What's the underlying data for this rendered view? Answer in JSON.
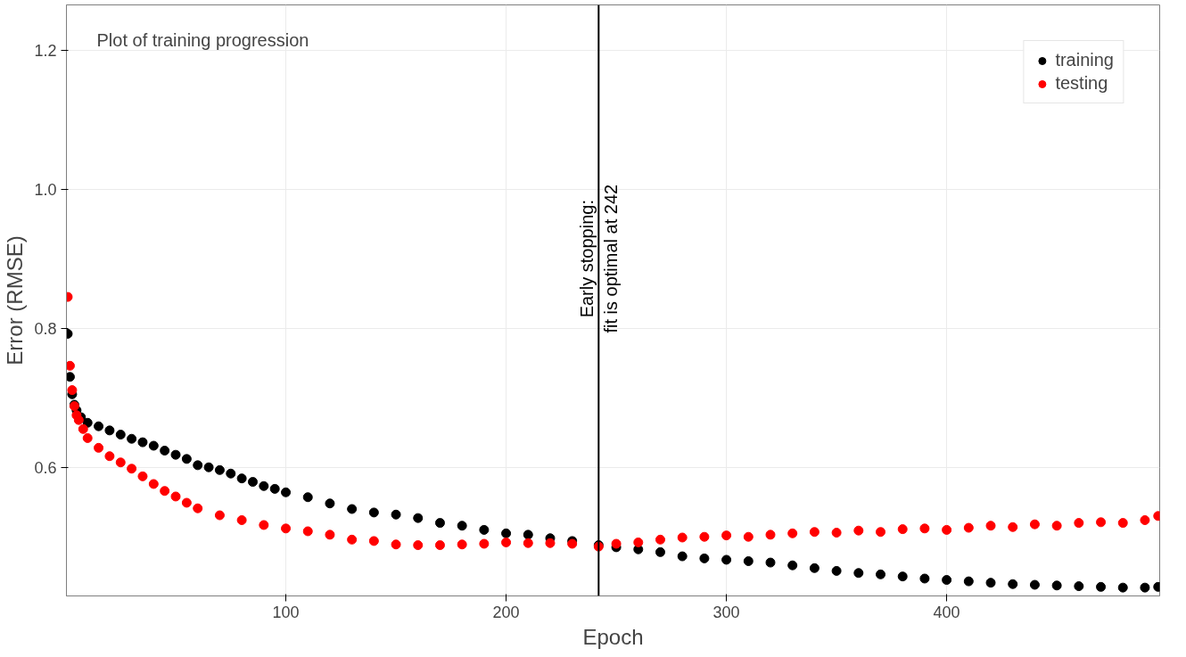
{
  "chart_data": {
    "type": "scatter",
    "xlabel": "Epoch",
    "ylabel": "Error (RMSE)",
    "annotations": [
      "Plot of training progression"
    ],
    "xlim": [
      0.4,
      496.7
    ],
    "ylim": [
      0.415,
      1.265
    ],
    "xticks": [
      100,
      200,
      300,
      400
    ],
    "yticks": [
      0.6,
      0.8,
      {
        "value": 1,
        "label": "1.0"
      },
      1.2
    ],
    "grid": true,
    "legend": "top right",
    "marker": "circle",
    "ref_lines": [
      {
        "axis": "x",
        "value": 242,
        "label": "Early stopping:\nfit is optimal at 242",
        "color": "#000000"
      }
    ],
    "series": [
      {
        "name": "training",
        "color": "#000000",
        "x": [
          1,
          2,
          3,
          4,
          5,
          7,
          10,
          15,
          20,
          25,
          30,
          35,
          40,
          45,
          50,
          55,
          60,
          65,
          70,
          75,
          80,
          85,
          90,
          95,
          100,
          110,
          120,
          130,
          140,
          150,
          160,
          170,
          180,
          190,
          200,
          210,
          220,
          230,
          242,
          250,
          260,
          270,
          280,
          290,
          300,
          310,
          320,
          330,
          340,
          350,
          360,
          370,
          380,
          390,
          400,
          410,
          420,
          430,
          440,
          450,
          460,
          470,
          480,
          490,
          496
        ],
        "values": [
          0.792,
          0.73,
          0.705,
          0.69,
          0.682,
          0.672,
          0.664,
          0.659,
          0.653,
          0.647,
          0.641,
          0.636,
          0.631,
          0.624,
          0.618,
          0.612,
          0.603,
          0.6,
          0.596,
          0.591,
          0.584,
          0.579,
          0.573,
          0.569,
          0.564,
          0.557,
          0.548,
          0.54,
          0.535,
          0.532,
          0.527,
          0.52,
          0.516,
          0.51,
          0.505,
          0.503,
          0.498,
          0.494,
          0.488,
          0.485,
          0.482,
          0.478,
          0.472,
          0.469,
          0.467,
          0.465,
          0.463,
          0.459,
          0.455,
          0.451,
          0.448,
          0.446,
          0.443,
          0.44,
          0.438,
          0.436,
          0.434,
          0.432,
          0.431,
          0.43,
          0.429,
          0.428,
          0.427,
          0.427,
          0.428
        ]
      },
      {
        "name": "testing",
        "color": "#ff0000",
        "x": [
          1,
          2,
          3,
          4,
          5,
          6,
          8,
          10,
          15,
          20,
          25,
          30,
          35,
          40,
          45,
          50,
          55,
          60,
          70,
          80,
          90,
          100,
          110,
          120,
          130,
          140,
          150,
          160,
          170,
          180,
          190,
          200,
          210,
          220,
          230,
          242,
          250,
          260,
          270,
          280,
          290,
          300,
          310,
          320,
          330,
          340,
          350,
          360,
          370,
          380,
          390,
          400,
          410,
          420,
          430,
          440,
          450,
          460,
          470,
          480,
          490,
          496
        ],
        "values": [
          0.845,
          0.746,
          0.711,
          0.688,
          0.675,
          0.668,
          0.655,
          0.642,
          0.628,
          0.616,
          0.607,
          0.598,
          0.587,
          0.576,
          0.566,
          0.558,
          0.549,
          0.541,
          0.531,
          0.524,
          0.517,
          0.512,
          0.508,
          0.503,
          0.496,
          0.494,
          0.489,
          0.488,
          0.488,
          0.489,
          0.49,
          0.492,
          0.491,
          0.491,
          0.49,
          0.486,
          0.49,
          0.492,
          0.496,
          0.499,
          0.5,
          0.502,
          0.5,
          0.503,
          0.505,
          0.507,
          0.506,
          0.509,
          0.507,
          0.511,
          0.512,
          0.51,
          0.513,
          0.516,
          0.514,
          0.518,
          0.516,
          0.52,
          0.521,
          0.52,
          0.524,
          0.53
        ]
      }
    ]
  }
}
